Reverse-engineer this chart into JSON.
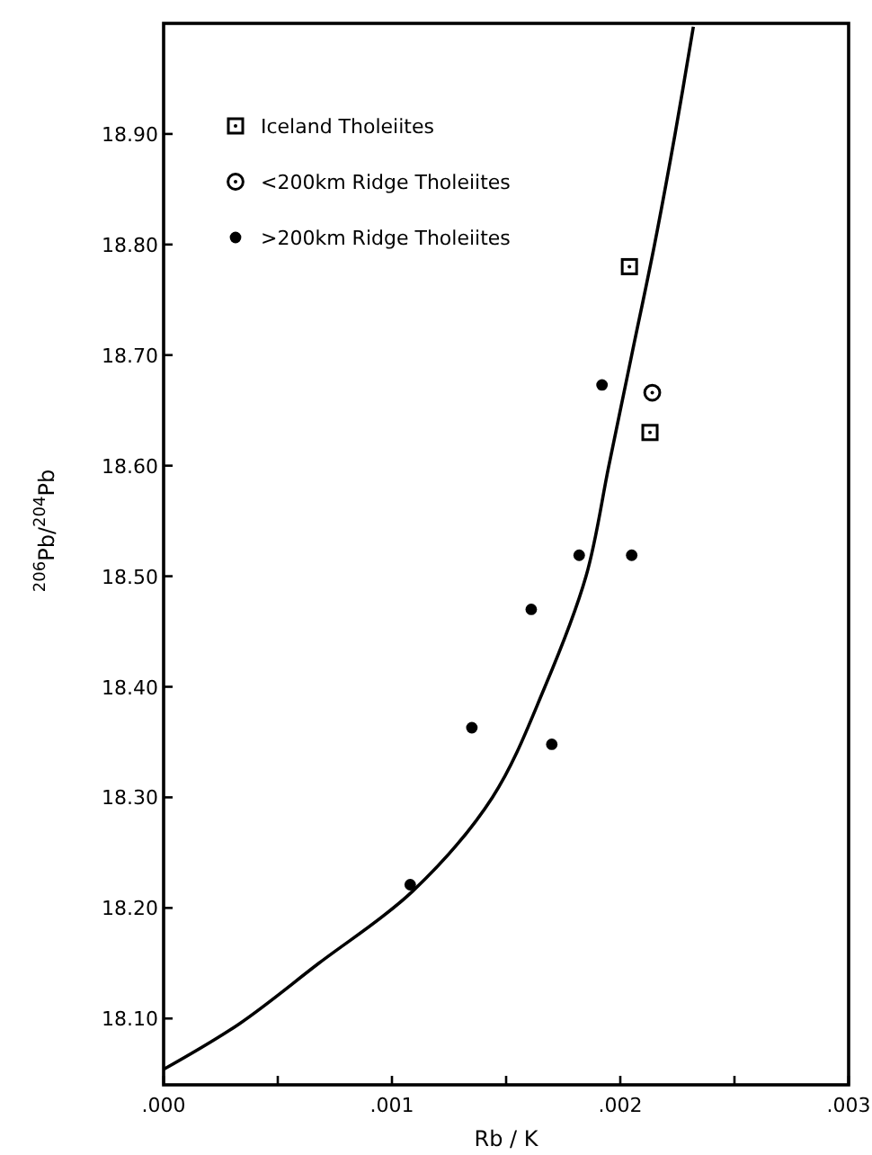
{
  "chart_data": {
    "type": "scatter",
    "xlabel": "Rb / K",
    "ylabel": "$^{206}$Pb/$^{204}$Pb",
    "xlim": [
      0,
      0.003
    ],
    "ylim": [
      18.04,
      19.0
    ],
    "xticks": [
      {
        "value": 0,
        "label": ".000"
      },
      {
        "value": 0.0005,
        "label": null
      },
      {
        "value": 0.001,
        "label": ".001"
      },
      {
        "value": 0.0015,
        "label": null
      },
      {
        "value": 0.002,
        "label": ".002"
      },
      {
        "value": 0.0025,
        "label": null
      },
      {
        "value": 0.003,
        "label": ".003"
      }
    ],
    "yticks": [
      {
        "value": 18.1,
        "label": "18.10"
      },
      {
        "value": 18.2,
        "label": "18.20"
      },
      {
        "value": 18.3,
        "label": "18.30"
      },
      {
        "value": 18.4,
        "label": "18.40"
      },
      {
        "value": 18.5,
        "label": "18.50"
      },
      {
        "value": 18.6,
        "label": "18.60"
      },
      {
        "value": 18.7,
        "label": "18.70"
      },
      {
        "value": 18.8,
        "label": "18.80"
      },
      {
        "value": 18.9,
        "label": "18.90"
      }
    ],
    "legend": "top left",
    "grid": false,
    "series": [
      {
        "name": "Iceland Tholeiites",
        "color": "#000000",
        "marker": "square",
        "x": [
          0.00204,
          0.00213
        ],
        "values": [
          18.78,
          18.63
        ]
      },
      {
        "name": "<200km Ridge Tholeiites",
        "color": "#000000",
        "marker": "circle",
        "x": [
          0.00214
        ],
        "values": [
          18.666
        ]
      },
      {
        "name": ">200km Ridge Tholeiites",
        "color": "#000000",
        "marker": "dot",
        "x": [
          0.00192,
          0.00182,
          0.00205,
          0.00161,
          0.00135,
          0.0017,
          0.00108
        ],
        "values": [
          18.673,
          18.519,
          18.519,
          18.47,
          18.363,
          18.348,
          18.221
        ]
      },
      {
        "type": "line",
        "color": "#000000",
        "x": [
          0,
          0.00033,
          0.00068,
          0.00109,
          0.00144,
          0.00167,
          0.00185,
          0.00195,
          0.00205,
          0.00215,
          0.00224,
          0.00232
        ],
        "values": [
          18.054,
          18.095,
          18.15,
          18.215,
          18.3,
          18.4,
          18.5,
          18.6,
          18.7,
          18.8,
          18.9,
          18.997
        ]
      }
    ]
  }
}
